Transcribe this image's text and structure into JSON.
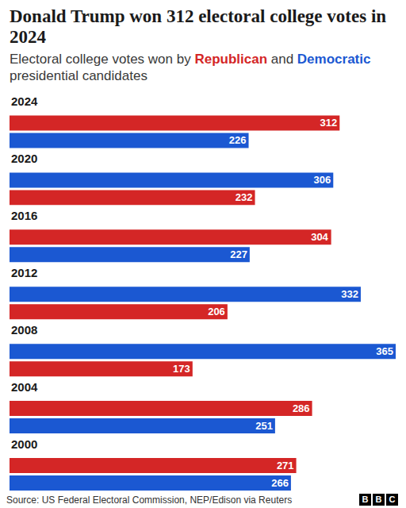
{
  "chart_data": {
    "type": "bar",
    "orientation": "horizontal",
    "title": "Donald Trump won 312 electoral college votes in 2024",
    "subtitle": "Electoral college votes won by Republican and Democratic presidential candidates",
    "source": "Source: US Federal Electoral Commission, NEP/Edison via Reuters",
    "logo": "BBC",
    "categories": [
      "2024",
      "2020",
      "2016",
      "2012",
      "2008",
      "2004",
      "2000"
    ],
    "series": [
      {
        "name": "Republican",
        "color": "#d42626",
        "values": [
          312,
          232,
          304,
          206,
          173,
          286,
          271
        ]
      },
      {
        "name": "Democratic",
        "color": "#1b58d2",
        "values": [
          226,
          306,
          227,
          332,
          365,
          251,
          266
        ]
      }
    ],
    "xlim": [
      0,
      365
    ],
    "tick_labels": false,
    "grid": false,
    "data_labels": true
  }
}
